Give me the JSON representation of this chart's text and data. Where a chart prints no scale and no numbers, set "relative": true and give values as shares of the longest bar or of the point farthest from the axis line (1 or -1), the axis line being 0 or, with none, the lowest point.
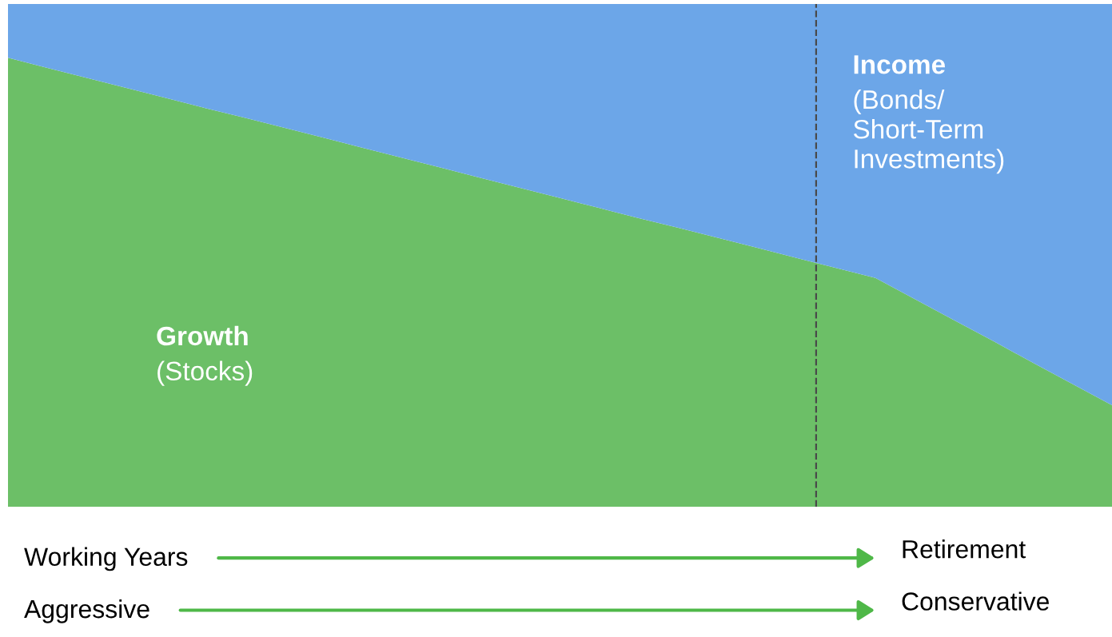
{
  "chart_data": {
    "type": "area",
    "relative": true,
    "stacked": true,
    "tick_labels": false,
    "categories": [
      null,
      null,
      null,
      null,
      null,
      null,
      null,
      null,
      null,
      null,
      null,
      null,
      null,
      null,
      null,
      null,
      null,
      null,
      null,
      null,
      null,
      null,
      null,
      null,
      null,
      null,
      null,
      null,
      null
    ],
    "series": [
      {
        "name": "Growth",
        "color": "#6cbf67",
        "values": [
          0.893,
          0.873,
          0.853,
          0.833,
          0.813,
          0.793,
          0.774,
          0.754,
          0.734,
          0.714,
          0.694,
          0.674,
          0.654,
          0.634,
          0.614,
          0.594,
          0.574,
          0.555,
          0.535,
          0.515,
          0.495,
          0.475,
          0.455,
          0.413,
          0.371,
          0.329,
          0.286,
          0.244,
          0.202
        ]
      },
      {
        "name": "Income",
        "color": "#6ca6e8",
        "values": [
          0.107,
          0.127,
          0.147,
          0.167,
          0.187,
          0.207,
          0.226,
          0.246,
          0.266,
          0.286,
          0.306,
          0.326,
          0.346,
          0.366,
          0.386,
          0.406,
          0.426,
          0.445,
          0.465,
          0.485,
          0.505,
          0.525,
          0.545,
          0.587,
          0.629,
          0.671,
          0.714,
          0.756,
          0.798
        ]
      }
    ],
    "annotations": [
      "(Stocks)",
      "(Bonds/\nShort-Term\nInvestments)",
      "Working Years",
      "Retirement",
      "Aggressive",
      "Conservative"
    ]
  }
}
